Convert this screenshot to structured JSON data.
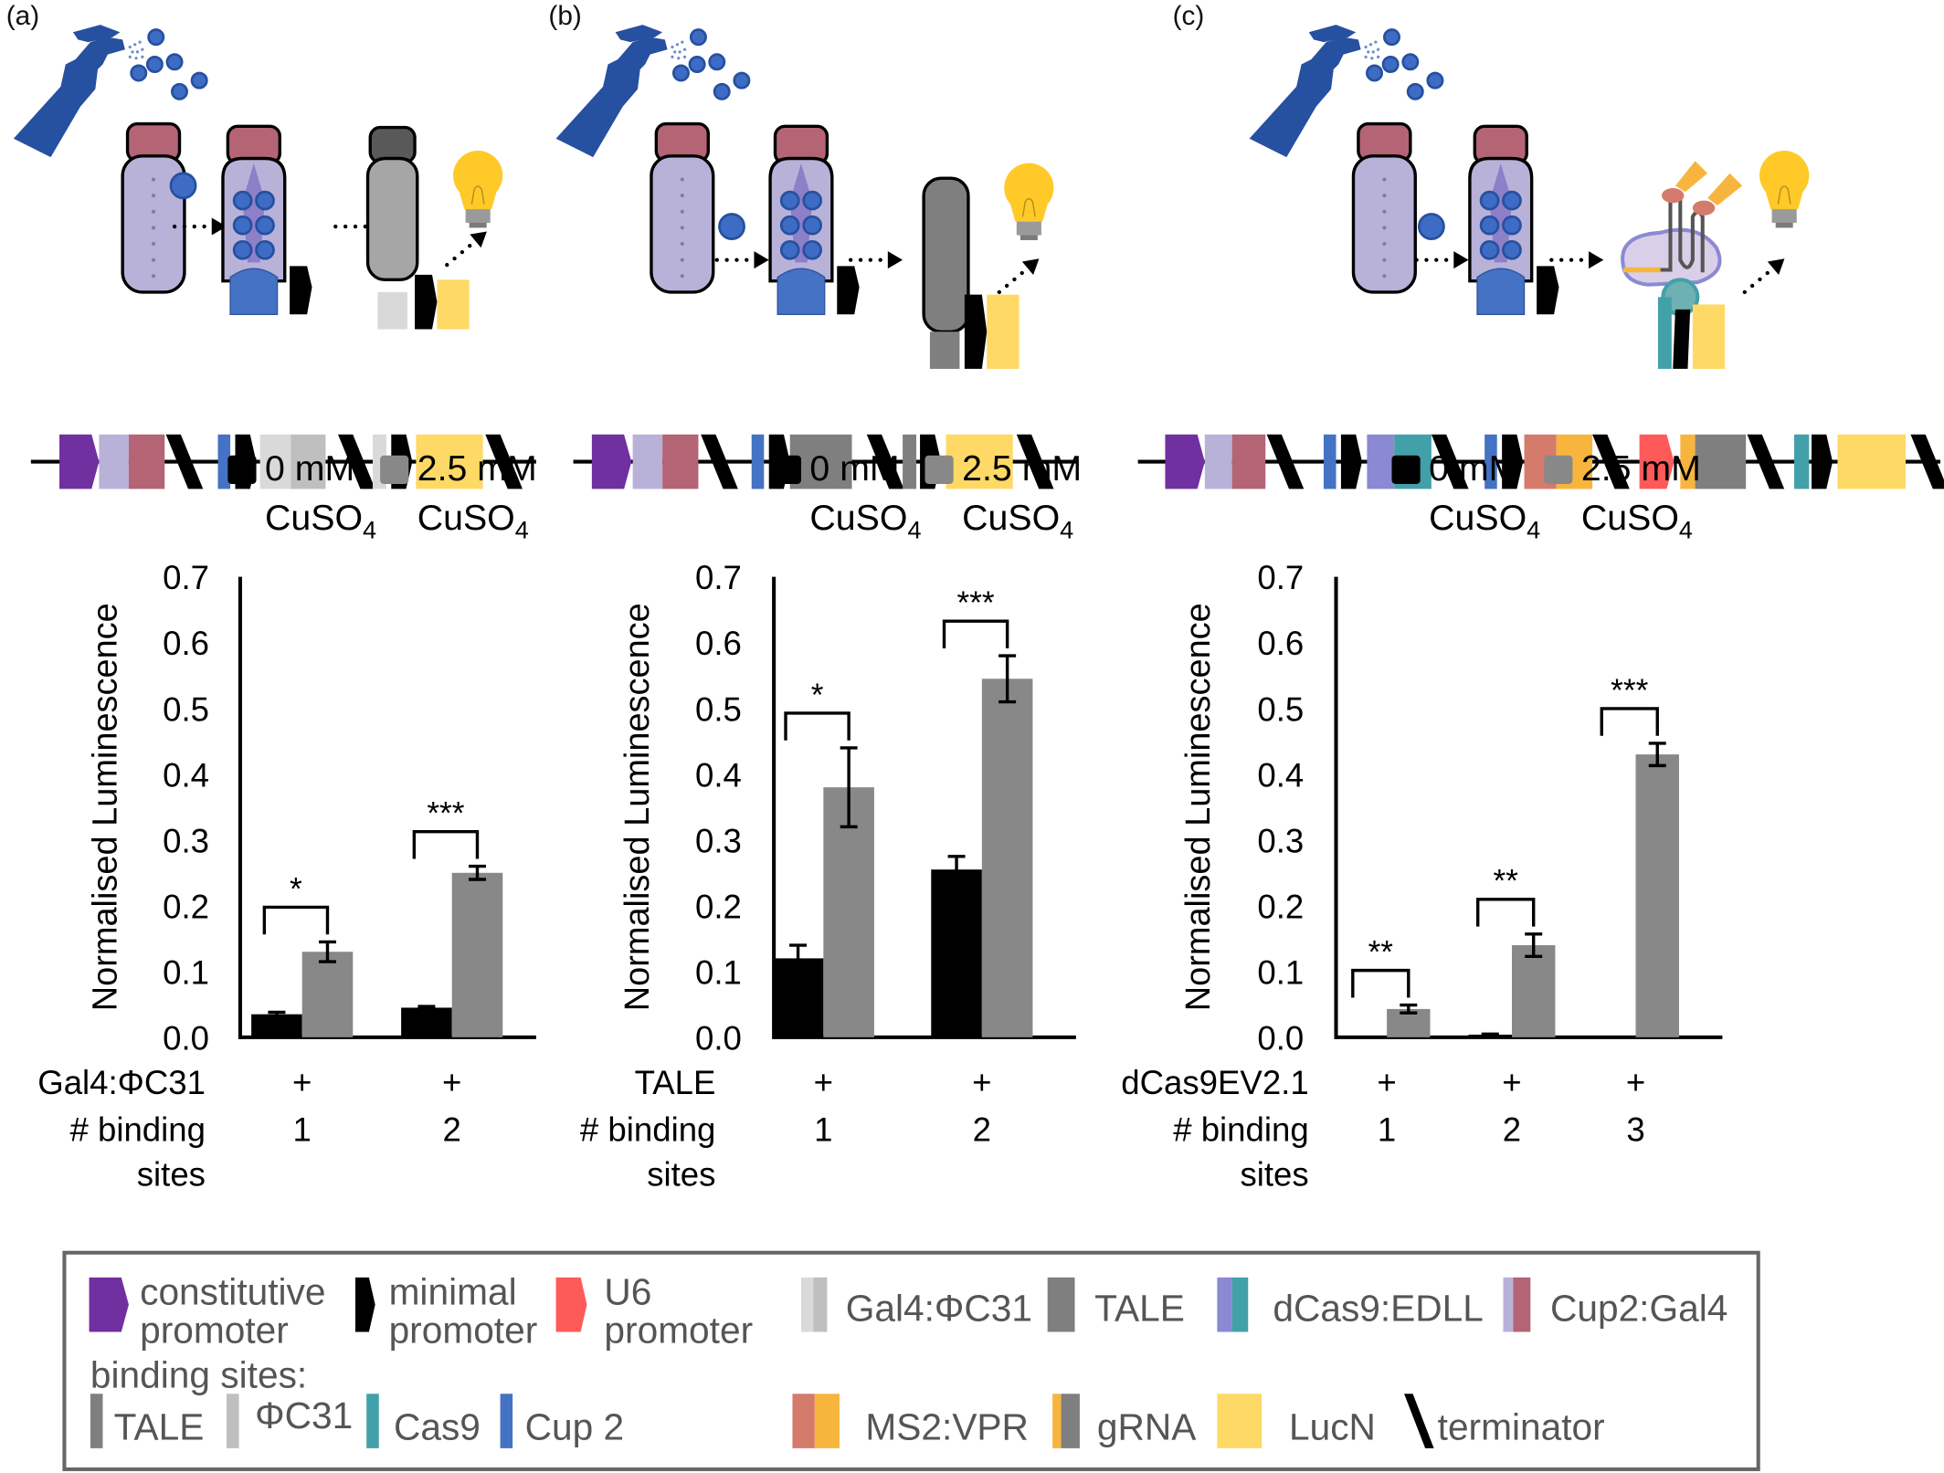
{
  "figure": {
    "panels": [
      "(a)",
      "(b)",
      "(c)"
    ],
    "legend_series": [
      {
        "line1": "0 mM",
        "line2": "CuSO",
        "sub": "4",
        "color": "#000000"
      },
      {
        "line1": "2.5 mM",
        "line2": "CuSO",
        "sub": "4",
        "color": "#888888"
      }
    ],
    "x_row_labels": {
      "binding": "# binding",
      "sites": "sites"
    }
  },
  "chart_data": [
    {
      "type": "bar",
      "panel": "(a)",
      "title": "",
      "ylabel": "Normalised Luminescence",
      "ylim": [
        0,
        0.7
      ],
      "yticks": [
        "0.0",
        "0.1",
        "0.2",
        "0.3",
        "0.4",
        "0.5",
        "0.6",
        "0.7"
      ],
      "activator_label": "Gal4:ΦC31",
      "activator_values": [
        "+",
        "+"
      ],
      "categories": [
        "1",
        "2"
      ],
      "series": [
        {
          "name": "0 mM CuSO4",
          "values": [
            0.035,
            0.045
          ],
          "errors": [
            0.003,
            0.002
          ]
        },
        {
          "name": "2.5 mM CuSO4",
          "values": [
            0.13,
            0.25
          ],
          "errors": [
            0.015,
            0.01
          ]
        }
      ],
      "significance": [
        "*",
        "***"
      ]
    },
    {
      "type": "bar",
      "panel": "(b)",
      "title": "",
      "ylabel": "Normalised Luminescence",
      "ylim": [
        0,
        0.7
      ],
      "yticks": [
        "0.0",
        "0.1",
        "0.2",
        "0.3",
        "0.4",
        "0.5",
        "0.6",
        "0.7"
      ],
      "activator_label": "TALE",
      "activator_values": [
        "+",
        "+"
      ],
      "categories": [
        "1",
        "2"
      ],
      "series": [
        {
          "name": "0 mM CuSO4",
          "values": [
            0.12,
            0.255
          ],
          "errors": [
            0.02,
            0.02
          ]
        },
        {
          "name": "2.5 mM CuSO4",
          "values": [
            0.38,
            0.545
          ],
          "errors": [
            0.06,
            0.035
          ]
        }
      ],
      "significance": [
        "*",
        "***"
      ]
    },
    {
      "type": "bar",
      "panel": "(c)",
      "title": "",
      "ylabel": "Normalised Luminescence",
      "ylim": [
        0,
        0.7
      ],
      "yticks": [
        "0.0",
        "0.1",
        "0.2",
        "0.3",
        "0.4",
        "0.5",
        "0.6",
        "0.7"
      ],
      "activator_label": "dCas9EV2.1",
      "activator_values": [
        "+",
        "+",
        "+"
      ],
      "categories": [
        "1",
        "2",
        "3"
      ],
      "series": [
        {
          "name": "0 mM CuSO4",
          "values": [
            0.001,
            0.004,
            0.001
          ],
          "errors": [
            0,
            0.001,
            0
          ]
        },
        {
          "name": "2.5 mM CuSO4",
          "values": [
            0.043,
            0.14,
            0.43
          ],
          "errors": [
            0.006,
            0.017,
            0.017
          ]
        }
      ],
      "significance": [
        "**",
        "**",
        "***"
      ]
    }
  ],
  "parts_key": {
    "row1": [
      {
        "label1": "constitutive",
        "label2": "promoter",
        "icon": "constitutive-promoter-icon",
        "colors": [
          "#7030a0"
        ]
      },
      {
        "label1": "minimal",
        "label2": "promoter",
        "icon": "minimal-promoter-icon",
        "colors": [
          "#000000"
        ]
      },
      {
        "label1": "U6",
        "label2": "promoter",
        "icon": "u6-promoter-icon",
        "colors": [
          "#ff5a5a"
        ]
      },
      {
        "label1": "Gal4:ΦC31",
        "label2": "",
        "icon": "gal4-phic31-icon",
        "colors": [
          "#d9d9d9",
          "#bfbfbf"
        ]
      },
      {
        "label1": "TALE",
        "label2": "",
        "icon": "tale-icon",
        "colors": [
          "#7f7f7f"
        ]
      },
      {
        "label1": "dCas9:EDLL",
        "label2": "",
        "icon": "dcas9-edll-icon",
        "colors": [
          "#8b89d4",
          "#42a0a8"
        ]
      },
      {
        "label1": "Cup2:Gal4",
        "label2": "",
        "icon": "cup2-gal4-icon",
        "colors": [
          "#b8b2d9",
          "#b46475"
        ]
      }
    ],
    "binding_sites_title": "binding sites:",
    "binding_sites": [
      {
        "label": "TALE",
        "color": "#7f7f7f"
      },
      {
        "label": "ΦC31",
        "color": "#bfbfbf"
      },
      {
        "label": "Cas9",
        "color": "#42a0a8"
      },
      {
        "label": "Cup 2",
        "color": "#4472c4"
      }
    ],
    "row2": [
      {
        "label": "MS2:VPR",
        "icon": "ms2-vpr-icon",
        "colors": [
          "#d47b6c",
          "#f8b53e"
        ]
      },
      {
        "label": "gRNA",
        "icon": "grna-icon",
        "colors": [
          "#f8b53e",
          "#7f7f7f"
        ]
      },
      {
        "label": "LucN",
        "icon": "lucn-icon",
        "colors": [
          "#ffd966"
        ]
      },
      {
        "label": "terminator",
        "icon": "terminator-icon",
        "colors": [
          "#000000"
        ]
      }
    ]
  },
  "colors": {
    "spray": "#2650a0",
    "cup2_body": "#b8b2d9",
    "cup2_head": "#b46475",
    "copper": "#3e6cc4",
    "bulb": "#ffc928"
  }
}
